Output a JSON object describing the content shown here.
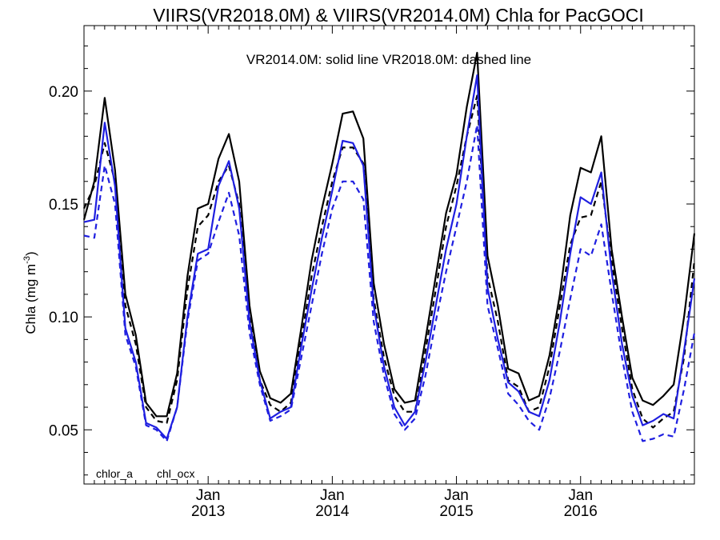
{
  "chart_data": {
    "type": "line",
    "title": "VIIRS(VR2018.0M) & VIIRS(VR2014.0M)  Chla for PacGOCI",
    "annotation": "VR2014.0M: solid line   VR2018.0M: dashed line",
    "ylabel": "Chla (mg m",
    "ylabel_superscript": "-3",
    "ylabel_close": ")",
    "ylim": [
      0.026,
      0.229
    ],
    "xlim": [
      "2012-01",
      "2016-12"
    ],
    "grid": false,
    "yticks": [
      0.05,
      0.1,
      0.15,
      0.2
    ],
    "ytick_labels": [
      "0.05",
      "0.10",
      "0.15",
      "0.20"
    ],
    "xticks": [
      {
        "x": "2013-01",
        "month": "Jan",
        "year": "2013"
      },
      {
        "x": "2014-01",
        "month": "Jan",
        "year": "2014"
      },
      {
        "x": "2015-01",
        "month": "Jan",
        "year": "2015"
      },
      {
        "x": "2016-01",
        "month": "Jan",
        "year": "2016"
      }
    ],
    "legend": [
      {
        "label": "chlor_a",
        "color": "#000000"
      },
      {
        "label": "chl_ocx",
        "color": "#1f1fe0"
      }
    ],
    "legend_position": "bottom-left",
    "x": [
      "2012-01",
      "2012-02",
      "2012-03",
      "2012-04",
      "2012-05",
      "2012-06",
      "2012-07",
      "2012-08",
      "2012-09",
      "2012-10",
      "2012-11",
      "2012-12",
      "2013-01",
      "2013-02",
      "2013-03",
      "2013-04",
      "2013-05",
      "2013-06",
      "2013-07",
      "2013-08",
      "2013-09",
      "2013-10",
      "2013-11",
      "2013-12",
      "2014-01",
      "2014-02",
      "2014-03",
      "2014-04",
      "2014-05",
      "2014-06",
      "2014-07",
      "2014-08",
      "2014-09",
      "2014-10",
      "2014-11",
      "2014-12",
      "2015-01",
      "2015-02",
      "2015-03",
      "2015-04",
      "2015-05",
      "2015-06",
      "2015-07",
      "2015-08",
      "2015-09",
      "2015-10",
      "2015-11",
      "2015-12",
      "2016-01",
      "2016-02",
      "2016-03",
      "2016-04",
      "2016-05",
      "2016-06",
      "2016-07",
      "2016-08",
      "2016-09",
      "2016-10",
      "2016-11",
      "2016-12"
    ],
    "series": [
      {
        "name": "chlor_a",
        "version": "VR2014.0M",
        "color": "#000000",
        "style": "solid",
        "values": [
          0.143,
          0.16,
          0.197,
          0.165,
          0.11,
          0.092,
          0.062,
          0.056,
          0.056,
          0.075,
          0.118,
          0.148,
          0.15,
          0.17,
          0.181,
          0.16,
          0.105,
          0.076,
          0.064,
          0.062,
          0.066,
          0.095,
          0.125,
          0.148,
          0.168,
          0.19,
          0.191,
          0.179,
          0.115,
          0.088,
          0.068,
          0.062,
          0.063,
          0.09,
          0.118,
          0.146,
          0.163,
          0.193,
          0.217,
          0.127,
          0.105,
          0.077,
          0.075,
          0.063,
          0.065,
          0.083,
          0.11,
          0.145,
          0.166,
          0.164,
          0.18,
          0.13,
          0.1,
          0.073,
          0.063,
          0.061,
          0.065,
          0.07,
          0.1,
          0.137
        ]
      },
      {
        "name": "chlor_a",
        "version": "VR2018.0M",
        "color": "#000000",
        "style": "dashed",
        "values": [
          0.148,
          0.158,
          0.177,
          0.16,
          0.105,
          0.088,
          0.06,
          0.054,
          0.053,
          0.072,
          0.112,
          0.14,
          0.145,
          0.16,
          0.167,
          0.15,
          0.1,
          0.072,
          0.061,
          0.058,
          0.062,
          0.09,
          0.118,
          0.14,
          0.16,
          0.175,
          0.175,
          0.168,
          0.108,
          0.082,
          0.065,
          0.058,
          0.058,
          0.085,
          0.112,
          0.14,
          0.158,
          0.18,
          0.198,
          0.118,
          0.098,
          0.072,
          0.069,
          0.058,
          0.06,
          0.078,
          0.105,
          0.132,
          0.144,
          0.145,
          0.16,
          0.125,
          0.095,
          0.068,
          0.055,
          0.051,
          0.055,
          0.058,
          0.082,
          0.125
        ]
      },
      {
        "name": "chl_ocx",
        "version": "VR2014.0M",
        "color": "#1f1fe0",
        "style": "solid",
        "values": [
          0.142,
          0.143,
          0.186,
          0.158,
          0.095,
          0.08,
          0.053,
          0.051,
          0.046,
          0.06,
          0.1,
          0.128,
          0.13,
          0.158,
          0.169,
          0.148,
          0.098,
          0.072,
          0.055,
          0.058,
          0.06,
          0.087,
          0.112,
          0.135,
          0.156,
          0.178,
          0.177,
          0.167,
          0.105,
          0.078,
          0.06,
          0.052,
          0.058,
          0.08,
          0.105,
          0.13,
          0.15,
          0.18,
          0.207,
          0.113,
          0.09,
          0.071,
          0.067,
          0.058,
          0.056,
          0.072,
          0.098,
          0.128,
          0.153,
          0.15,
          0.164,
          0.12,
          0.088,
          0.065,
          0.052,
          0.054,
          0.057,
          0.055,
          0.085,
          0.117
        ]
      },
      {
        "name": "chl_ocx",
        "version": "VR2018.0M",
        "color": "#1f1fe0",
        "style": "dashed",
        "values": [
          0.136,
          0.135,
          0.167,
          0.15,
          0.092,
          0.078,
          0.052,
          0.05,
          0.045,
          0.06,
          0.098,
          0.125,
          0.128,
          0.142,
          0.155,
          0.136,
          0.093,
          0.07,
          0.054,
          0.056,
          0.059,
          0.082,
          0.105,
          0.128,
          0.148,
          0.16,
          0.16,
          0.152,
          0.098,
          0.074,
          0.057,
          0.05,
          0.055,
          0.074,
          0.098,
          0.12,
          0.14,
          0.16,
          0.185,
          0.105,
          0.086,
          0.066,
          0.061,
          0.054,
          0.05,
          0.064,
          0.085,
          0.108,
          0.13,
          0.127,
          0.141,
          0.111,
          0.082,
          0.058,
          0.045,
          0.046,
          0.048,
          0.047,
          0.068,
          0.093
        ]
      }
    ]
  }
}
